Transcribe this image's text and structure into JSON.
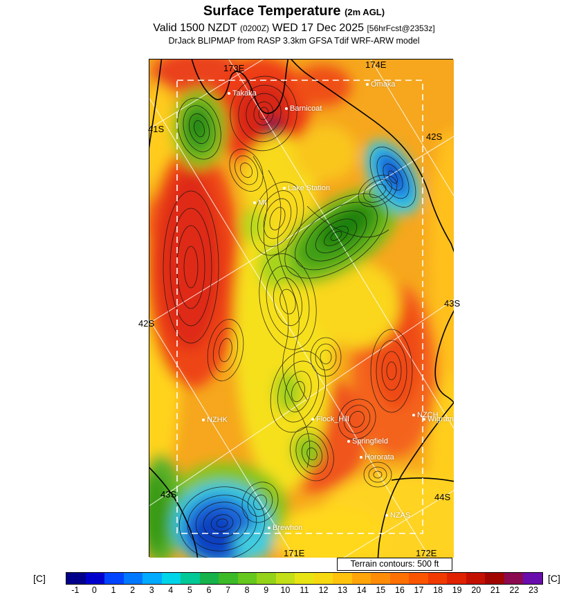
{
  "header": {
    "title": "Surface Temperature",
    "title_suffix": "(2m AGL)",
    "valid_line": {
      "prefix": "Valid 1500 NZDT",
      "zulu": "(0200Z)",
      "date": "WED 17 Dec 2025",
      "fcst": "[56hrFcst@2353z]"
    },
    "model_line": "DrJack BLIPMAP from RASP 3.3km GFSA Tdif WRF-ARW model"
  },
  "map": {
    "grid_labels": [
      {
        "text": "173E"
      },
      {
        "text": "174E"
      },
      {
        "text": "41S"
      },
      {
        "text": "42S"
      },
      {
        "text": "42S"
      },
      {
        "text": "43S"
      },
      {
        "text": "43S"
      },
      {
        "text": "44S"
      },
      {
        "text": "171E"
      },
      {
        "text": "172E"
      }
    ],
    "sites": [
      {
        "name": "Takaka"
      },
      {
        "name": "Barnicoat"
      },
      {
        "name": "Omaka"
      },
      {
        "name": "Lake Station"
      },
      {
        "name": "Mt"
      },
      {
        "name": "NZHK"
      },
      {
        "name": "Flock_Hill"
      },
      {
        "name": "NZCH"
      },
      {
        "name": "Wigram"
      },
      {
        "name": "Springfield"
      },
      {
        "name": "Hororata"
      },
      {
        "name": "NZAS"
      },
      {
        "name": "Brewhon"
      }
    ]
  },
  "legend": {
    "units_left": "[C]",
    "units_right": "[C]",
    "terrain_note": "Terrain contours: 500 ft",
    "ticks": [
      "-1",
      "0",
      "1",
      "2",
      "3",
      "4",
      "5",
      "6",
      "7",
      "8",
      "9",
      "10",
      "11",
      "12",
      "13",
      "14",
      "15",
      "16",
      "17",
      "18",
      "19",
      "20",
      "21",
      "22",
      "23"
    ],
    "colors": [
      "#00008b",
      "#0000cd",
      "#0044ff",
      "#0077ff",
      "#00aaff",
      "#00d4e8",
      "#00c896",
      "#17b24b",
      "#3cba28",
      "#66c71e",
      "#94d31a",
      "#c3df17",
      "#e8e414",
      "#f7d911",
      "#ffc30e",
      "#ffa50a",
      "#ff8c07",
      "#ff7003",
      "#fb5500",
      "#f13a00",
      "#e02200",
      "#c41000",
      "#a00500",
      "#8b0a50",
      "#6a0dad"
    ]
  }
}
